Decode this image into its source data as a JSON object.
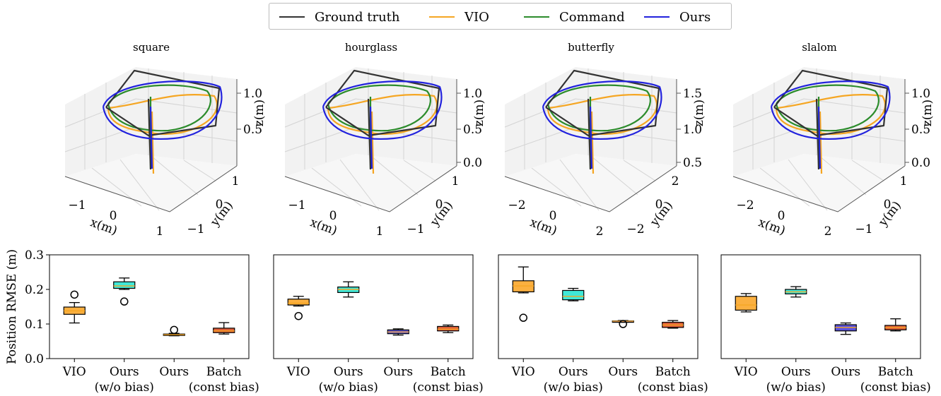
{
  "legend": [
    {
      "label": "Ground truth",
      "color": "#333333"
    },
    {
      "label": "VIO",
      "color": "#f5a623"
    },
    {
      "label": "Command",
      "color": "#2c8c2c"
    },
    {
      "label": "Ours",
      "color": "#2222dd"
    }
  ],
  "chart_data": [
    {
      "type": "line3d",
      "title": "square",
      "xlabel": "x(m)",
      "ylabel": "y(m)",
      "zlabel": "z(m)",
      "xticks": [
        "−1",
        "0",
        "1"
      ],
      "yticks": [
        "−1",
        "0",
        "1"
      ],
      "zticks": [
        "0.5",
        "1.0"
      ]
    },
    {
      "type": "line3d",
      "title": "hourglass",
      "xlabel": "x(m)",
      "ylabel": "y(m)",
      "zlabel": "z(m)",
      "xticks": [
        "−1",
        "0",
        "1"
      ],
      "yticks": [
        "−1",
        "0",
        "1"
      ],
      "zticks": [
        "0.0",
        "0.5",
        "1.0"
      ]
    },
    {
      "type": "line3d",
      "title": "butterfly",
      "xlabel": "x(m)",
      "ylabel": "y(m)",
      "zlabel": "z(m)",
      "xticks": [
        "−2",
        "0",
        "2"
      ],
      "yticks": [
        "−2",
        "0",
        "2"
      ],
      "zticks": [
        "0.5",
        "1.0",
        "1.5"
      ]
    },
    {
      "type": "line3d",
      "title": "slalom",
      "xlabel": "x(m)",
      "ylabel": "y(m)",
      "zlabel": "z(m)",
      "xticks": [
        "−2",
        "0",
        "2"
      ],
      "yticks": [
        "−1",
        "0",
        "1"
      ],
      "zticks": [
        "0.0",
        "0.5",
        "1.0"
      ]
    }
  ],
  "box_charts": {
    "type": "box",
    "ylabel": "Position RMSE (m)",
    "ylim": [
      0.0,
      0.3
    ],
    "yticks": [
      "0.0",
      "0.1",
      "0.2",
      "0.3"
    ],
    "categories": [
      {
        "line1": "VIO",
        "line2": ""
      },
      {
        "line1": "Ours",
        "line2": "(w/o bias)"
      },
      {
        "line1": "Ours",
        "line2": ""
      },
      {
        "line1": "Batch",
        "line2": "(const bias)"
      }
    ],
    "box_colors": [
      "#fbb040",
      "#40e8d8",
      "#5a52e0",
      "#e0603a"
    ],
    "median_color": "#f5a623",
    "panels": [
      {
        "name": "square",
        "boxes": [
          {
            "whislo": 0.103,
            "q1": 0.128,
            "med": 0.138,
            "q3": 0.149,
            "whishi": 0.162,
            "fliers": [
              0.185
            ]
          },
          {
            "whislo": 0.2,
            "q1": 0.203,
            "med": 0.21,
            "q3": 0.222,
            "whishi": 0.233,
            "fliers": [
              0.165
            ]
          },
          {
            "whislo": 0.066,
            "q1": 0.067,
            "med": 0.069,
            "q3": 0.071,
            "whishi": 0.073,
            "fliers": [
              0.083
            ]
          },
          {
            "whislo": 0.071,
            "q1": 0.075,
            "med": 0.08,
            "q3": 0.088,
            "whishi": 0.104,
            "fliers": []
          }
        ]
      },
      {
        "name": "hourglass",
        "boxes": [
          {
            "whislo": 0.152,
            "q1": 0.155,
            "med": 0.16,
            "q3": 0.172,
            "whishi": 0.18,
            "fliers": [
              0.123
            ]
          },
          {
            "whislo": 0.178,
            "q1": 0.191,
            "med": 0.2,
            "q3": 0.207,
            "whishi": 0.222,
            "fliers": []
          },
          {
            "whislo": 0.068,
            "q1": 0.072,
            "med": 0.077,
            "q3": 0.083,
            "whishi": 0.086,
            "fliers": []
          },
          {
            "whislo": 0.075,
            "q1": 0.08,
            "med": 0.085,
            "q3": 0.093,
            "whishi": 0.097,
            "fliers": []
          }
        ]
      },
      {
        "name": "butterfly",
        "boxes": [
          {
            "whislo": 0.19,
            "q1": 0.193,
            "med": 0.21,
            "q3": 0.225,
            "whishi": 0.265,
            "fliers": [
              0.118
            ]
          },
          {
            "whislo": 0.167,
            "q1": 0.17,
            "med": 0.18,
            "q3": 0.197,
            "whishi": 0.203,
            "fliers": []
          },
          {
            "whislo": 0.105,
            "q1": 0.106,
            "med": 0.108,
            "q3": 0.109,
            "whishi": 0.11,
            "fliers": [
              0.1
            ]
          },
          {
            "whislo": 0.088,
            "q1": 0.09,
            "med": 0.097,
            "q3": 0.105,
            "whishi": 0.11,
            "fliers": []
          }
        ]
      },
      {
        "name": "slalom",
        "boxes": [
          {
            "whislo": 0.135,
            "q1": 0.14,
            "med": 0.155,
            "q3": 0.18,
            "whishi": 0.188,
            "fliers": []
          },
          {
            "whislo": 0.178,
            "q1": 0.187,
            "med": 0.193,
            "q3": 0.2,
            "whishi": 0.208,
            "fliers": []
          },
          {
            "whislo": 0.07,
            "q1": 0.08,
            "med": 0.09,
            "q3": 0.098,
            "whishi": 0.103,
            "fliers": []
          },
          {
            "whislo": 0.08,
            "q1": 0.083,
            "med": 0.09,
            "q3": 0.096,
            "whishi": 0.115,
            "fliers": []
          }
        ]
      }
    ]
  }
}
